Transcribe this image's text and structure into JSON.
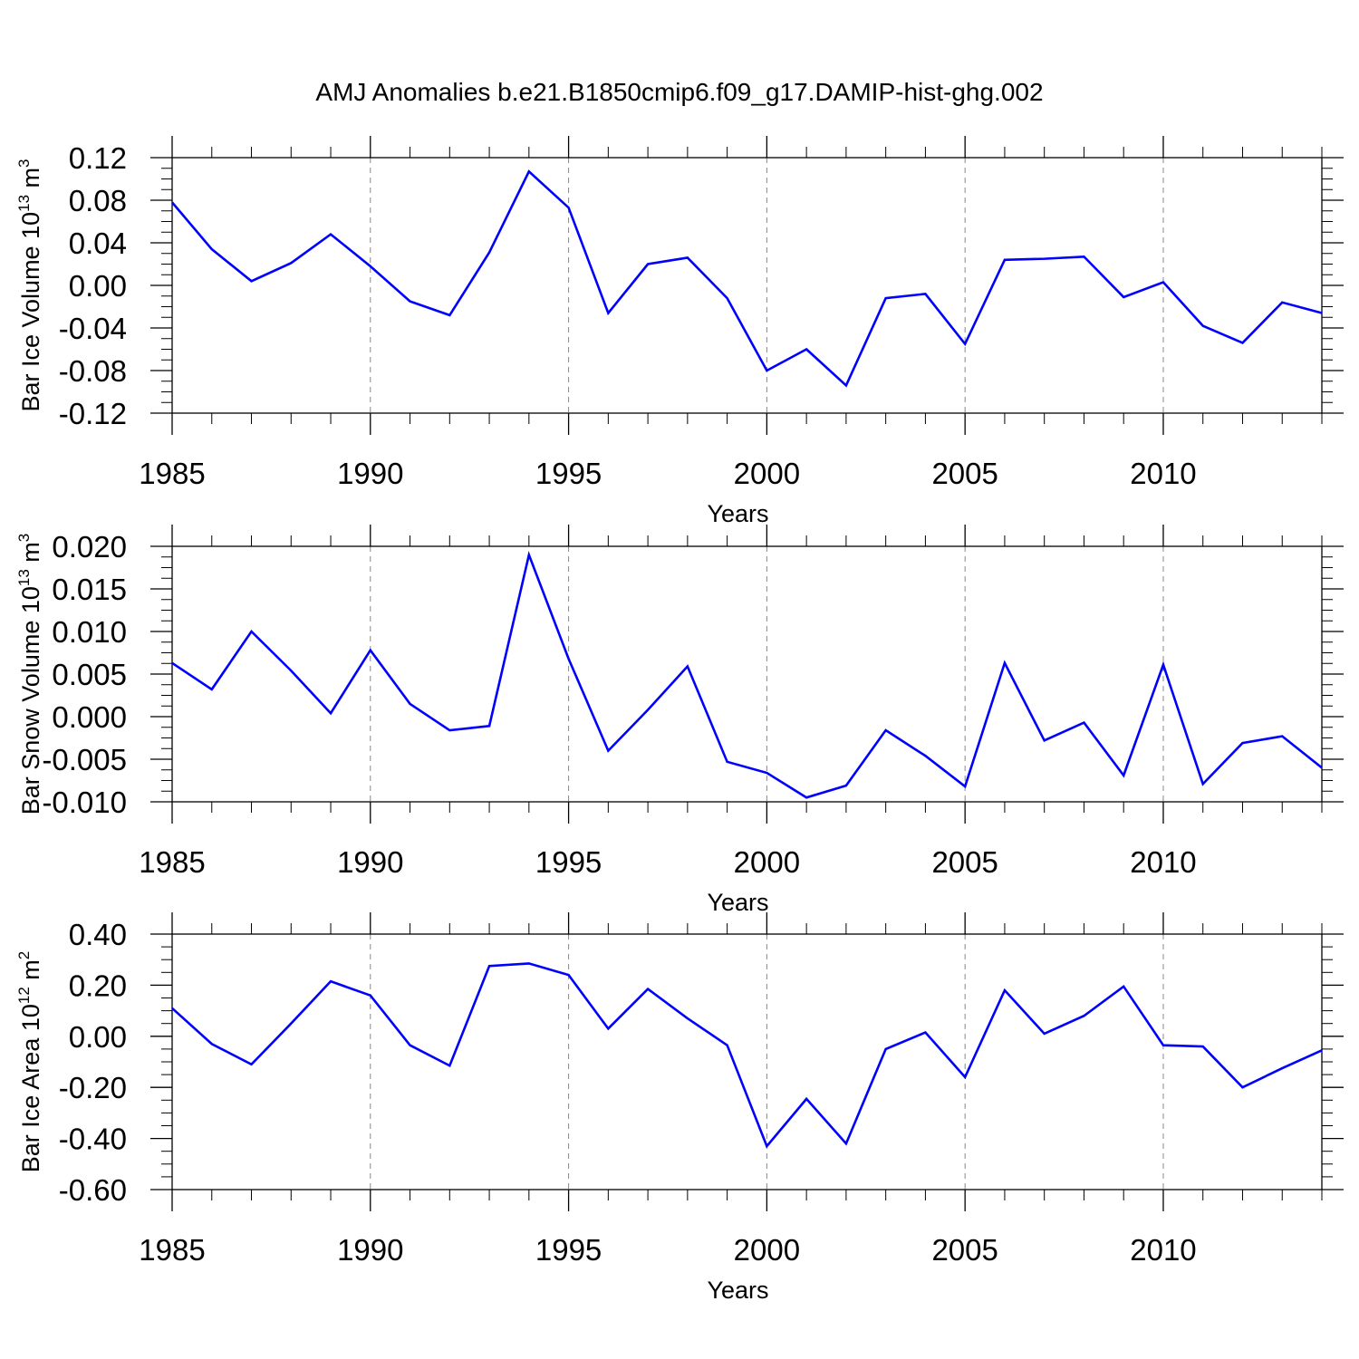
{
  "figure": {
    "title": "AMJ Anomalies b.e21.B1850cmip6.f09_g17.DAMIP-hist-ghg.002",
    "line_color": "#0000ff"
  },
  "chart_data": [
    {
      "type": "line",
      "name": "bar-ice-volume",
      "title": "",
      "xlabel": "Years",
      "ylabel": {
        "base": "Bar Ice Volume 10",
        "exp": "13",
        "unit": " m",
        "unit_exp": "3"
      },
      "xlim": [
        1985,
        2014
      ],
      "ylim": [
        -0.12,
        0.12
      ],
      "xticks": [
        "1985",
        "1990",
        "1995",
        "2000",
        "2005",
        "2010"
      ],
      "yticks": [
        "-0.12",
        "-0.08",
        "-0.04",
        "0.00",
        "0.04",
        "0.08",
        "0.12"
      ],
      "x": [
        1985,
        1986,
        1987,
        1988,
        1989,
        1990,
        1991,
        1992,
        1993,
        1994,
        1995,
        1996,
        1997,
        1998,
        1999,
        2000,
        2001,
        2002,
        2003,
        2004,
        2005,
        2006,
        2007,
        2008,
        2009,
        2010,
        2011,
        2012,
        2013,
        2014
      ],
      "series": [
        {
          "name": "Bar Ice Volume",
          "values": [
            0.078,
            0.034,
            0.004,
            0.021,
            0.048,
            0.018,
            -0.015,
            -0.028,
            0.031,
            0.107,
            0.073,
            -0.026,
            0.02,
            0.026,
            -0.012,
            -0.08,
            -0.06,
            -0.094,
            -0.012,
            -0.008,
            -0.055,
            0.024,
            0.025,
            0.027,
            -0.011,
            0.003,
            -0.038,
            -0.054,
            -0.016,
            -0.026
          ]
        }
      ]
    },
    {
      "type": "line",
      "name": "bar-snow-volume",
      "title": "",
      "xlabel": "Years",
      "ylabel": {
        "base": "Bar Snow Volume 10",
        "exp": "13",
        "unit": " m",
        "unit_exp": "3"
      },
      "xlim": [
        1985,
        2014
      ],
      "ylim": [
        -0.01,
        0.02
      ],
      "xticks": [
        "1985",
        "1990",
        "1995",
        "2000",
        "2005",
        "2010"
      ],
      "yticks": [
        "-0.010",
        "-0.005",
        "0.000",
        "0.005",
        "0.010",
        "0.015",
        "0.020"
      ],
      "x": [
        1985,
        1986,
        1987,
        1988,
        1989,
        1990,
        1991,
        1992,
        1993,
        1994,
        1995,
        1996,
        1997,
        1998,
        1999,
        2000,
        2001,
        2002,
        2003,
        2004,
        2005,
        2006,
        2007,
        2008,
        2009,
        2010,
        2011,
        2012,
        2013,
        2014
      ],
      "series": [
        {
          "name": "Bar Snow Volume",
          "values": [
            0.0063,
            0.0032,
            0.01,
            0.0054,
            0.0004,
            0.0078,
            0.0015,
            -0.0016,
            -0.0011,
            0.019,
            0.0068,
            -0.004,
            0.0008,
            0.0059,
            -0.0053,
            -0.0066,
            -0.0095,
            -0.0081,
            -0.0016,
            -0.0046,
            -0.0082,
            0.0063,
            -0.0028,
            -0.0007,
            -0.0069,
            0.0061,
            -0.0079,
            -0.0031,
            -0.0023,
            -0.006
          ]
        }
      ]
    },
    {
      "type": "line",
      "name": "bar-ice-area",
      "title": "",
      "xlabel": "Years",
      "ylabel": {
        "base": "Bar Ice Area 10",
        "exp": "12",
        "unit": " m",
        "unit_exp": "2"
      },
      "xlim": [
        1985,
        2014
      ],
      "ylim": [
        -0.6,
        0.4
      ],
      "xticks": [
        "1985",
        "1990",
        "1995",
        "2000",
        "2005",
        "2010"
      ],
      "yticks": [
        "-0.60",
        "-0.40",
        "-0.20",
        "0.00",
        "0.20",
        "0.40"
      ],
      "x": [
        1985,
        1986,
        1987,
        1988,
        1989,
        1990,
        1991,
        1992,
        1993,
        1994,
        1995,
        1996,
        1997,
        1998,
        1999,
        2000,
        2001,
        2002,
        2003,
        2004,
        2005,
        2006,
        2007,
        2008,
        2009,
        2010,
        2011,
        2012,
        2013,
        2014
      ],
      "series": [
        {
          "name": "Bar Ice Area",
          "values": [
            0.11,
            -0.03,
            -0.11,
            0.05,
            0.215,
            0.16,
            -0.035,
            -0.115,
            0.275,
            0.285,
            0.24,
            0.03,
            0.185,
            0.07,
            -0.035,
            -0.43,
            -0.245,
            -0.42,
            -0.05,
            0.015,
            -0.16,
            0.18,
            0.01,
            0.08,
            0.195,
            -0.035,
            -0.04,
            -0.2,
            -0.125,
            -0.055
          ]
        }
      ]
    }
  ]
}
